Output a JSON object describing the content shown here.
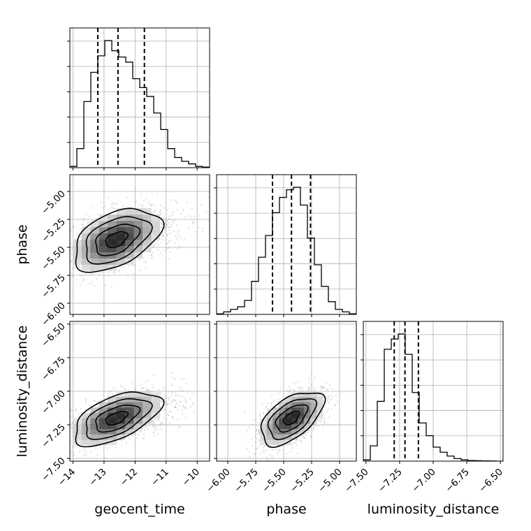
{
  "chart_data": {
    "type": "corner",
    "parameters": [
      "geocent_time",
      "phase",
      "luminosity_distance"
    ],
    "axis_labels": {
      "x": [
        "geocent_time",
        "phase",
        "luminosity_distance"
      ],
      "y": [
        "phase",
        "luminosity_distance"
      ]
    },
    "ranges": {
      "geocent_time": [
        -14.1,
        -9.6
      ],
      "phase": [
        -6.1,
        -4.85
      ],
      "luminosity_distance": [
        -7.52,
        -6.48
      ]
    },
    "ticks": {
      "geocent_time": [
        -14,
        -13,
        -12,
        -11,
        -10
      ],
      "phase": [
        -6.0,
        -5.75,
        -5.5,
        -5.25,
        -5.0
      ],
      "luminosity_distance": [
        -7.5,
        -7.25,
        -7.0,
        -6.75,
        -6.5
      ]
    },
    "tick_labels": {
      "geocent_time": [
        "−14",
        "−13",
        "−12",
        "−11",
        "−10"
      ],
      "phase": [
        "−6.00",
        "−5.75",
        "−5.50",
        "−5.25",
        "−5.00"
      ],
      "luminosity_distance": [
        "−7.50",
        "−7.25",
        "−7.00",
        "−6.75",
        "−6.50"
      ]
    },
    "quantiles": {
      "geocent_time": [
        -13.2,
        -12.55,
        -11.7
      ],
      "phase": [
        -5.6,
        -5.43,
        -5.26
      ],
      "luminosity_distance": [
        -7.29,
        -7.21,
        -7.11
      ]
    },
    "histograms": {
      "geocent_time": {
        "edges": [
          -14.1,
          -13.875,
          -13.65,
          -13.425,
          -13.2,
          -12.975,
          -12.75,
          -12.525,
          -12.3,
          -12.075,
          -11.85,
          -11.625,
          -11.4,
          -11.175,
          -10.95,
          -10.725,
          -10.5,
          -10.275,
          -10.05,
          -9.825,
          -9.6
        ],
        "counts": [
          0.01,
          0.15,
          0.52,
          0.75,
          0.88,
          1.0,
          0.92,
          0.87,
          0.83,
          0.7,
          0.63,
          0.56,
          0.43,
          0.3,
          0.15,
          0.08,
          0.05,
          0.03,
          0.01,
          0.005
        ]
      },
      "phase": {
        "edges": [
          -6.1,
          -6.0375,
          -5.975,
          -5.9125,
          -5.85,
          -5.7875,
          -5.725,
          -5.6625,
          -5.6,
          -5.5375,
          -5.475,
          -5.4125,
          -5.35,
          -5.2875,
          -5.225,
          -5.1625,
          -5.1,
          -5.0375,
          -4.975,
          -4.9125,
          -4.85
        ],
        "counts": [
          0.005,
          0.02,
          0.04,
          0.06,
          0.11,
          0.26,
          0.45,
          0.62,
          0.8,
          0.92,
          0.98,
          1.0,
          0.86,
          0.6,
          0.39,
          0.22,
          0.1,
          0.04,
          0.02,
          0.005
        ]
      },
      "luminosity_distance": {
        "edges": [
          -7.52,
          -7.468,
          -7.416,
          -7.364,
          -7.312,
          -7.26,
          -7.208,
          -7.156,
          -7.104,
          -7.052,
          -7.0,
          -6.948,
          -6.896,
          -6.844,
          -6.792,
          -6.74,
          -6.688,
          -6.636,
          -6.584,
          -6.532,
          -6.48
        ],
        "counts": [
          0.01,
          0.12,
          0.47,
          0.88,
          0.96,
          1.0,
          0.84,
          0.54,
          0.3,
          0.2,
          0.11,
          0.07,
          0.04,
          0.02,
          0.01,
          0.005,
          0.003,
          0.002,
          0.001,
          0.0
        ]
      }
    },
    "correlations": {
      "phase_vs_geocent_time": {
        "mean": [
          -12.6,
          -5.43
        ],
        "sd": [
          0.7,
          0.14
        ],
        "rho": 0.45
      },
      "luminosity_distance_vs_geocent_time": {
        "mean": [
          -12.6,
          -7.2
        ],
        "sd": [
          0.7,
          0.1
        ],
        "rho": 0.55
      },
      "luminosity_distance_vs_phase": {
        "mean": [
          -5.43,
          -7.2
        ],
        "sd": [
          0.14,
          0.1
        ],
        "rho": 0.55
      }
    },
    "contour_levels": [
      0.5,
      1.0,
      1.5,
      2.0
    ],
    "grid": true,
    "colors": {
      "line": "#000000",
      "scatter": "#7f7f7f",
      "grid": "#b0b0b0"
    }
  }
}
